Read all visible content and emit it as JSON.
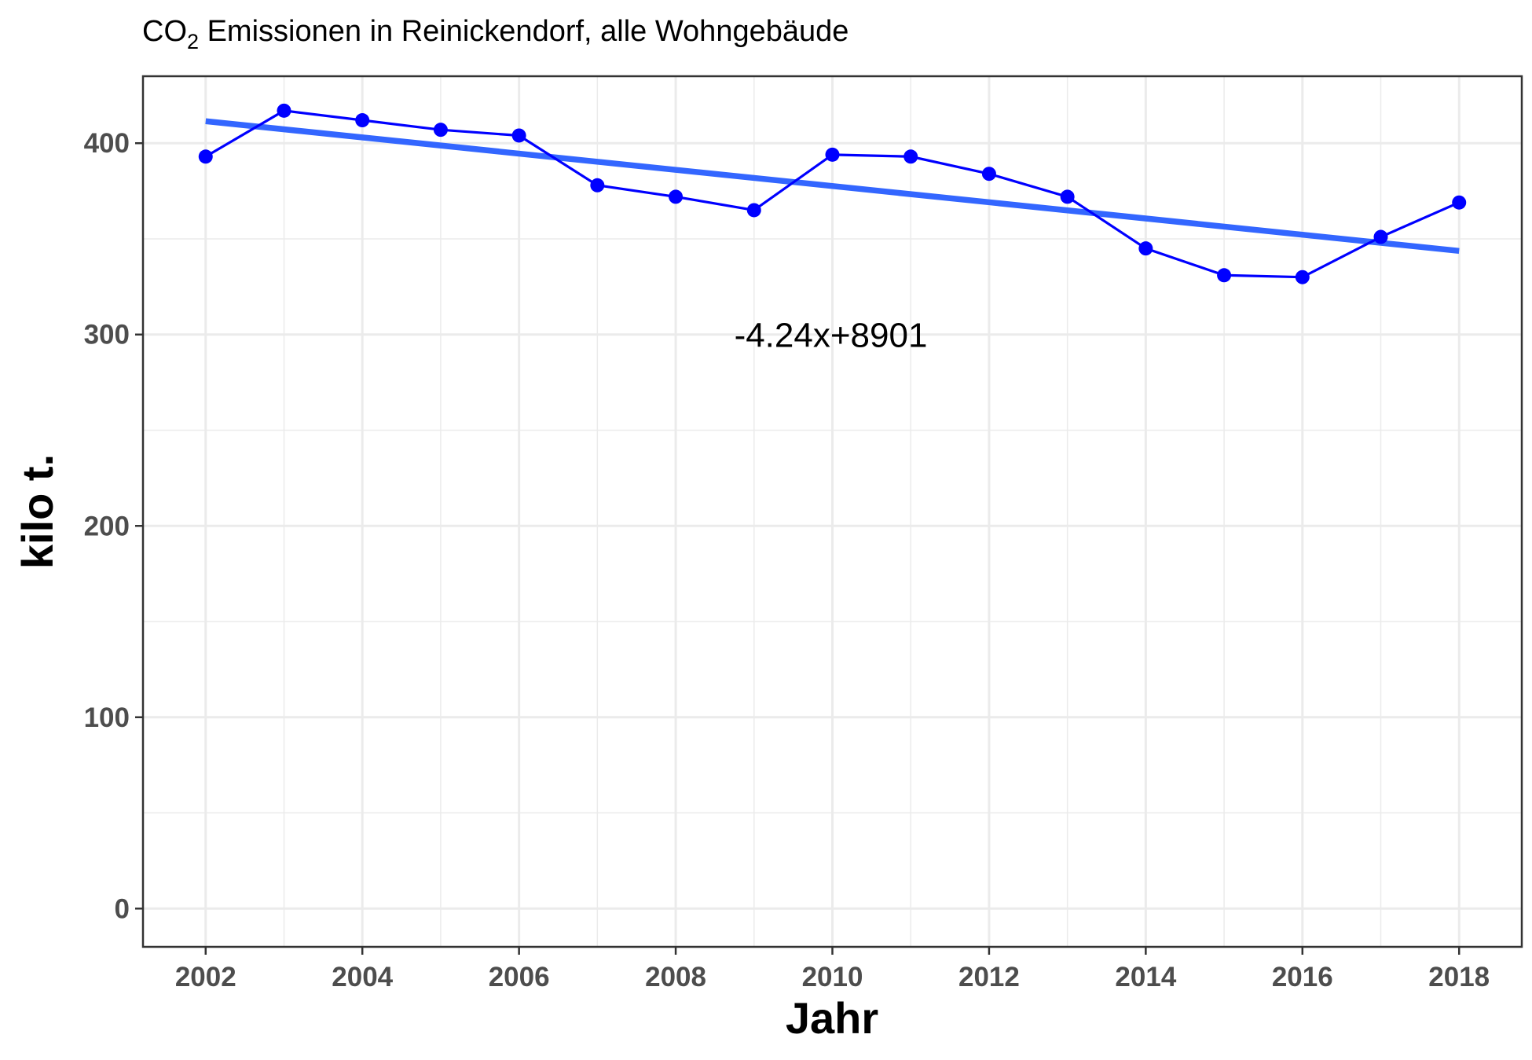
{
  "chart_data": {
    "type": "line",
    "title": "CO",
    "title_subscript": "2",
    "title_rest": " Emissionen in Reinickendorf, alle Wohngebäude",
    "xlabel": "Jahr",
    "ylabel": "kilo t.",
    "xlim": [
      2001.2,
      2018.8
    ],
    "ylim": [
      -20,
      435
    ],
    "x_ticks": [
      2002,
      2004,
      2006,
      2008,
      2010,
      2012,
      2014,
      2016,
      2018
    ],
    "y_ticks": [
      0,
      100,
      200,
      300,
      400
    ],
    "grid": true,
    "series": [
      {
        "color": "#0000ff",
        "x": [
          2002,
          2003,
          2004,
          2005,
          2006,
          2007,
          2008,
          2009,
          2010,
          2011,
          2012,
          2013,
          2014,
          2015,
          2016,
          2017,
          2018
        ],
        "y": [
          393,
          417,
          412,
          407,
          404,
          378,
          372,
          365,
          394,
          393,
          384,
          372,
          345,
          331,
          330,
          351,
          369
        ]
      }
    ],
    "trendline": {
      "color": "#3366ff",
      "slope": -4.24,
      "intercept": 8901,
      "x": [
        2002,
        2018
      ],
      "y": [
        411.5,
        343.7
      ],
      "label": "-4.24x+8901"
    }
  }
}
